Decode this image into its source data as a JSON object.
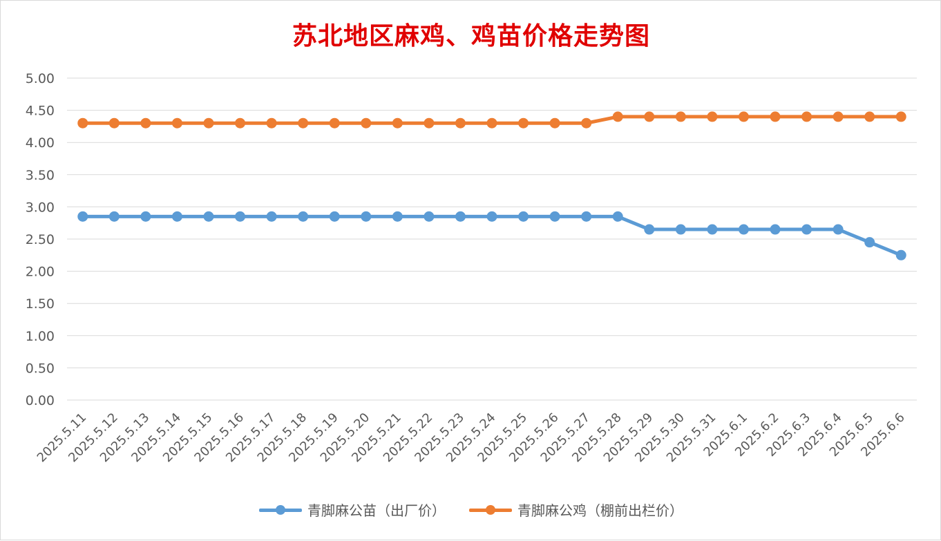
{
  "chart_data": {
    "type": "line",
    "title": "苏北地区麻鸡、鸡苗价格走势图",
    "xlabel": "",
    "ylabel": "",
    "ylim": [
      0,
      5
    ],
    "ytick_step": 0.5,
    "grid": true,
    "legend_position": "bottom",
    "categories": [
      "2025.5.11",
      "2025.5.12",
      "2025.5.13",
      "2025.5.14",
      "2025.5.15",
      "2025.5.16",
      "2025.5.17",
      "2025.5.18",
      "2025.5.19",
      "2025.5.20",
      "2025.5.21",
      "2025.5.22",
      "2025.5.23",
      "2025.5.24",
      "2025.5.25",
      "2025.5.26",
      "2025.5.27",
      "2025.5.28",
      "2025.5.29",
      "2025.5.30",
      "2025.5.31",
      "2025.6.1",
      "2025.6.2",
      "2025.6.3",
      "2025.6.4",
      "2025.6.5",
      "2025.6.6"
    ],
    "series": [
      {
        "name": "青脚麻公苗（出厂价）",
        "color": "#5b9bd5",
        "values": [
          2.85,
          2.85,
          2.85,
          2.85,
          2.85,
          2.85,
          2.85,
          2.85,
          2.85,
          2.85,
          2.85,
          2.85,
          2.85,
          2.85,
          2.85,
          2.85,
          2.85,
          2.85,
          2.65,
          2.65,
          2.65,
          2.65,
          2.65,
          2.65,
          2.65,
          2.45,
          2.25
        ]
      },
      {
        "name": "青脚麻公鸡（棚前出栏价）",
        "color": "#ed7d31",
        "values": [
          4.3,
          4.3,
          4.3,
          4.3,
          4.3,
          4.3,
          4.3,
          4.3,
          4.3,
          4.3,
          4.3,
          4.3,
          4.3,
          4.3,
          4.3,
          4.3,
          4.3,
          4.4,
          4.4,
          4.4,
          4.4,
          4.4,
          4.4,
          4.4,
          4.4,
          4.4,
          4.4
        ]
      }
    ]
  }
}
